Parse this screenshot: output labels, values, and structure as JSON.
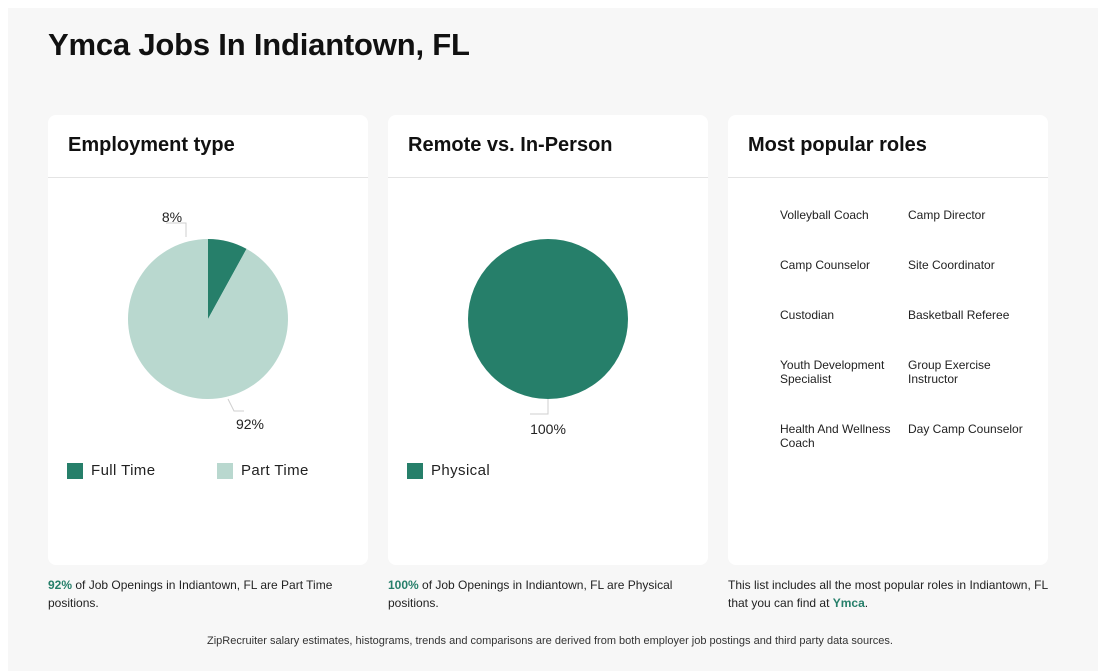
{
  "page": {
    "title": "Ymca Jobs In Indiantown, FL"
  },
  "colors": {
    "dark_green": "#267f6a",
    "light_green": "#b9d8cf"
  },
  "employment": {
    "title": "Employment type",
    "legend": [
      {
        "label": "Full Time",
        "color": "#267f6a"
      },
      {
        "label": "Part Time",
        "color": "#b9d8cf"
      }
    ],
    "caption_value": "92%",
    "caption_text": " of Job Openings in Indiantown, FL are Part Time positions."
  },
  "remote": {
    "title": "Remote vs. In-Person",
    "legend": [
      {
        "label": "Physical",
        "color": "#267f6a"
      }
    ],
    "caption_value": "100%",
    "caption_text": " of Job Openings in Indiantown, FL are Physical positions."
  },
  "roles": {
    "title": "Most popular roles",
    "items": [
      "Volleyball Coach",
      "Camp Director",
      "Camp Counselor",
      "Site Coordinator",
      "Custodian",
      "Basketball Referee",
      "Youth Development Specialist",
      "Group Exercise Instructor",
      "Health And Wellness Coach",
      "Day Camp Counselor"
    ],
    "caption_text": "This list includes all the most popular roles in Indiantown, FL that you can find at ",
    "caption_link": "Ymca",
    "caption_end": "."
  },
  "chart_data": [
    {
      "type": "pie",
      "categories": [
        "Full Time",
        "Part Time"
      ],
      "values": [
        8,
        92
      ],
      "labels": [
        "8%",
        "92%"
      ]
    },
    {
      "type": "pie",
      "categories": [
        "Physical"
      ],
      "values": [
        100
      ],
      "labels": [
        "100%"
      ]
    }
  ],
  "footer": {
    "text": "ZipRecruiter salary estimates, histograms, trends and comparisons are derived from both employer job postings and third party data sources."
  }
}
